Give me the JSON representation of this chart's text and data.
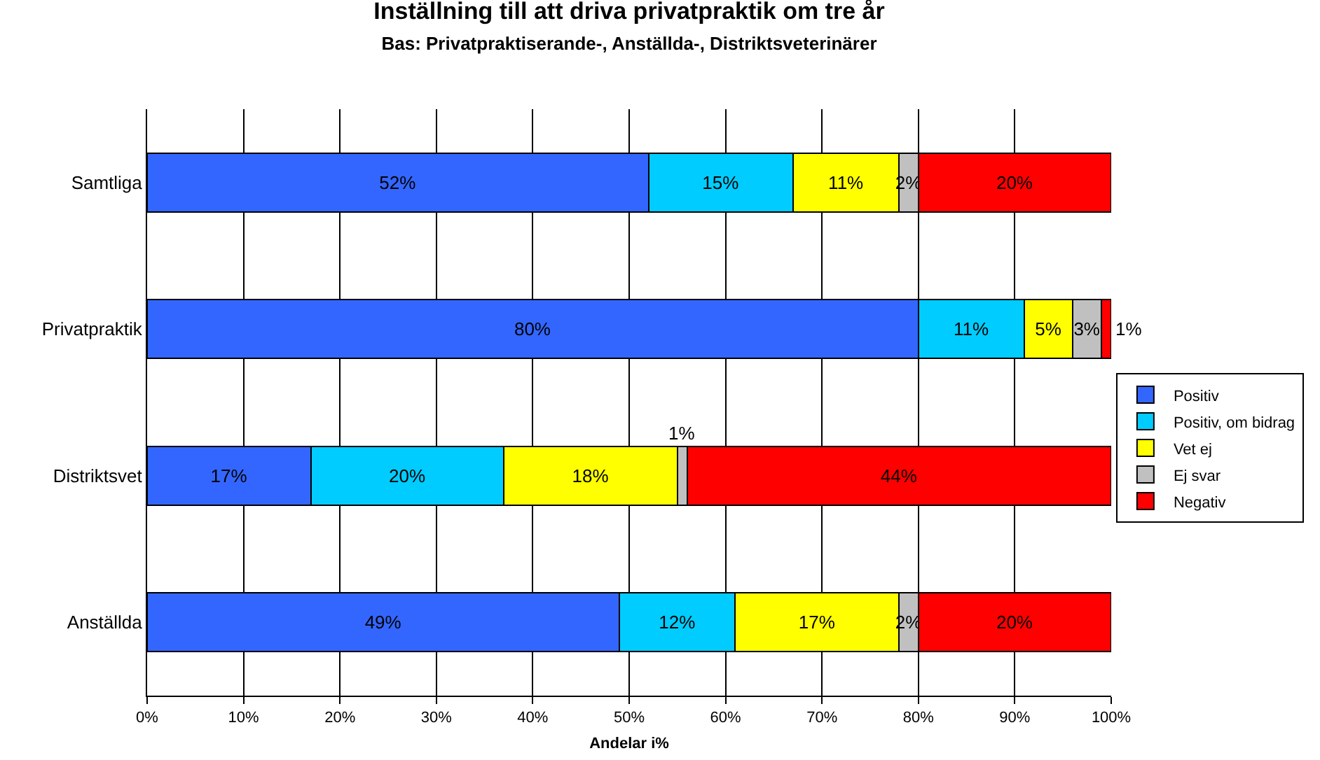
{
  "chart_data": {
    "type": "bar",
    "title": "Inställning till att driva privatpraktik om tre år",
    "subtitle": "Bas: Privatpraktiserande-, Anställda-, Distriktsveterinärer",
    "xlabel": "Andelar i%",
    "orientation": "horizontal",
    "stacked": true,
    "categories": [
      "Samtliga",
      "Privatpraktik",
      "Distriktsvet",
      "Anställda"
    ],
    "series": [
      {
        "name": "Positiv",
        "color": "#3366ff",
        "values": [
          52,
          80,
          17,
          49
        ],
        "value_labels": [
          "52%",
          "80%",
          "17%",
          "49%"
        ]
      },
      {
        "name": "Positiv, om bidrag",
        "color": "#00ccff",
        "values": [
          15,
          11,
          20,
          12
        ],
        "value_labels": [
          "15%",
          "11%",
          "20%",
          "12%"
        ]
      },
      {
        "name": "Vet ej",
        "color": "#ffff00",
        "values": [
          11,
          5,
          18,
          17
        ],
        "value_labels": [
          "11%",
          "5%",
          "18%",
          "17%"
        ]
      },
      {
        "name": "Ej svar",
        "color": "#c0c0c0",
        "values": [
          2,
          3,
          1,
          2
        ],
        "value_labels": [
          "2%",
          "3%",
          "1%",
          "2%"
        ]
      },
      {
        "name": "Negativ",
        "color": "#ff0000",
        "values": [
          20,
          1,
          44,
          20
        ],
        "value_labels": [
          "20%",
          "1%",
          "44%",
          "20%"
        ]
      }
    ],
    "xlim": [
      0,
      100
    ],
    "xticks": [
      {
        "value": 0,
        "label": "0%"
      },
      {
        "value": 10,
        "label": "10%"
      },
      {
        "value": 20,
        "label": "20%"
      },
      {
        "value": 30,
        "label": "30%"
      },
      {
        "value": 40,
        "label": "40%"
      },
      {
        "value": 50,
        "label": "50%"
      },
      {
        "value": 60,
        "label": "60%"
      },
      {
        "value": 70,
        "label": "70%"
      },
      {
        "value": 80,
        "label": "80%"
      },
      {
        "value": 90,
        "label": "90%"
      },
      {
        "value": 100,
        "label": "100%"
      }
    ],
    "grid": "x",
    "legend": "right"
  }
}
